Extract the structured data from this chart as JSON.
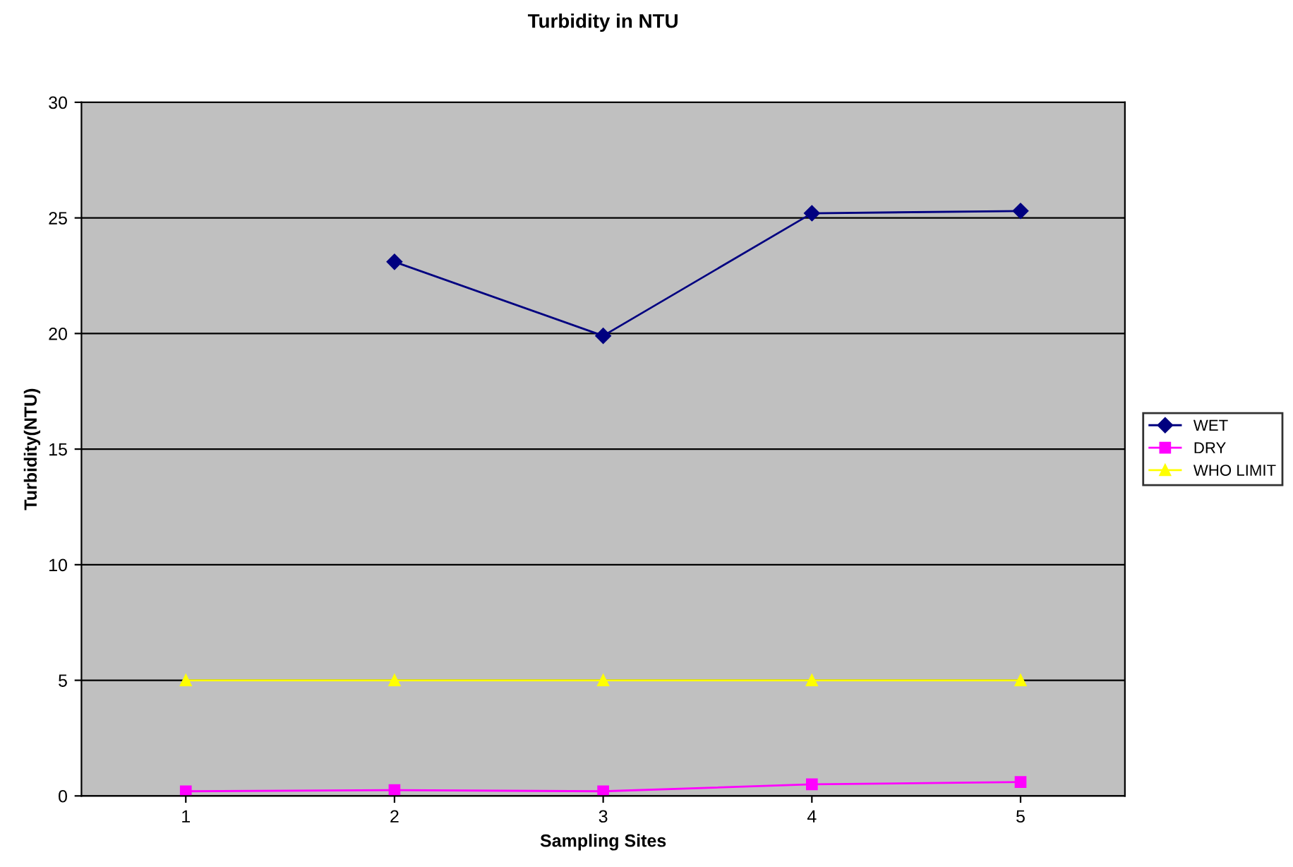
{
  "chart_data": {
    "type": "line",
    "title": "Turbidity in NTU",
    "xlabel": "Sampling Sites",
    "ylabel": "Turbidity(NTU)",
    "categories": [
      "1",
      "2",
      "3",
      "4",
      "5"
    ],
    "series": [
      {
        "name": "WET",
        "color": "#000080",
        "values": [
          null,
          23.1,
          19.9,
          25.2,
          25.3
        ],
        "marker": "diamond"
      },
      {
        "name": "DRY",
        "color": "#ff00ff",
        "values": [
          0.2,
          0.25,
          0.2,
          0.5,
          0.6
        ],
        "marker": "square"
      },
      {
        "name": "WHO LIMIT",
        "color": "#ffff00",
        "values": [
          5,
          5,
          5,
          5,
          5
        ],
        "marker": "triangle"
      }
    ],
    "ylim": [
      0,
      30
    ],
    "yticks": [
      0,
      5,
      10,
      15,
      20,
      25,
      30
    ],
    "grid": "y",
    "legend": "right",
    "line_style": "solid"
  }
}
